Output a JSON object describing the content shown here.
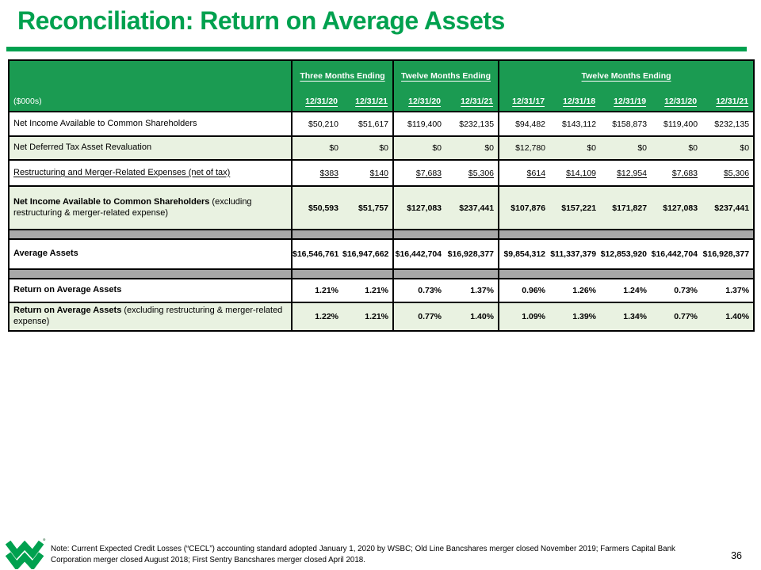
{
  "title": "Reconciliation: Return on Average Assets",
  "colors": {
    "brand_green": "#00A14F",
    "header_green": "#1B9B52",
    "row_light_green": "#E9F2E1",
    "spacer_gray": "#A8A8A8",
    "border_black": "#000000"
  },
  "table": {
    "unit_label": "($000s)",
    "column_groups": [
      {
        "label": "Three Months Ending",
        "dates": [
          "12/31/20",
          "12/31/21"
        ]
      },
      {
        "label": "Twelve Months Ending",
        "dates": [
          "12/31/20",
          "12/31/21"
        ]
      },
      {
        "label": "Twelve Months Ending",
        "dates": [
          "12/31/17",
          "12/31/18",
          "12/31/19",
          "12/31/20",
          "12/31/21"
        ]
      }
    ],
    "rows": [
      {
        "type": "data",
        "bg": "white",
        "bold_label": false,
        "bold_values": false,
        "underline": false,
        "label": "Net Income Available to Common Shareholders",
        "suffix": "",
        "values": [
          "$50,210",
          "$51,617",
          "$119,400",
          "$232,135",
          "$94,482",
          "$143,112",
          "$158,873",
          "$119,400",
          "$232,135"
        ]
      },
      {
        "type": "data",
        "bg": "green",
        "bold_label": false,
        "bold_values": false,
        "underline": false,
        "label": "Net Deferred Tax Asset Revaluation",
        "suffix": "",
        "values": [
          "$0",
          "$0",
          "$0",
          "$0",
          "$12,780",
          "$0",
          "$0",
          "$0",
          "$0"
        ]
      },
      {
        "type": "data",
        "bg": "white",
        "bold_label": false,
        "bold_values": false,
        "underline": true,
        "label": "Restructuring and Merger-Related Expenses (net of tax)",
        "suffix": "",
        "values": [
          "$383",
          "$140",
          "$7,683",
          "$5,306",
          "$614",
          "$14,109",
          "$12,954",
          "$7,683",
          "$5,306"
        ]
      },
      {
        "type": "data",
        "bg": "green",
        "bold_label": true,
        "bold_values": true,
        "underline": false,
        "label": "Net Income Available to Common Shareholders",
        "suffix": " (excluding restructuring & merger-related expense)",
        "values": [
          "$50,593",
          "$51,757",
          "$127,083",
          "$237,441",
          "$107,876",
          "$157,221",
          "$171,827",
          "$127,083",
          "$237,441"
        ]
      },
      {
        "type": "spacer"
      },
      {
        "type": "data",
        "bg": "white",
        "bold_label": true,
        "bold_values": true,
        "underline": false,
        "label": "Average Assets",
        "suffix": "",
        "values": [
          "$16,546,761",
          "$16,947,662",
          "$16,442,704",
          "$16,928,377",
          "$9,854,312",
          "$11,337,379",
          "$12,853,920",
          "$16,442,704",
          "$16,928,377"
        ]
      },
      {
        "type": "spacer"
      },
      {
        "type": "data",
        "bg": "white",
        "bold_label": true,
        "bold_values": true,
        "underline": false,
        "label": "Return on Average Assets",
        "suffix": "",
        "values": [
          "1.21%",
          "1.21%",
          "0.73%",
          "1.37%",
          "0.96%",
          "1.26%",
          "1.24%",
          "0.73%",
          "1.37%"
        ]
      },
      {
        "type": "data",
        "bg": "green",
        "bold_label": true,
        "bold_values": true,
        "underline": false,
        "label": "Return on Average Assets",
        "suffix": " (excluding restructuring & merger-related expense)",
        "values": [
          "1.22%",
          "1.21%",
          "0.77%",
          "1.40%",
          "1.09%",
          "1.39%",
          "1.34%",
          "0.77%",
          "1.40%"
        ]
      }
    ]
  },
  "footer": {
    "note": "Note: Current Expected Credit Losses (“CECL”) accounting standard adopted January 1, 2020 by WSBC; Old Line Bancshares merger closed November 2019; Farmers Capital Bank Corporation merger closed August 2018; First Sentry Bancshares merger closed April 2018.",
    "page_number": "36",
    "logo_name": "wesbanco-w-logo"
  }
}
